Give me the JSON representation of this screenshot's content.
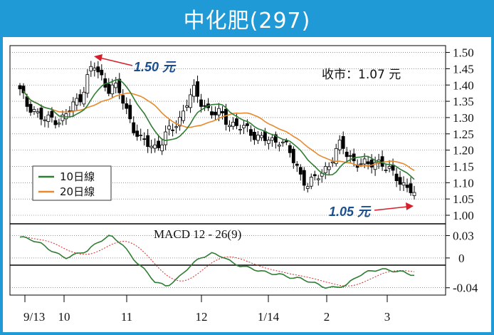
{
  "title": "中化肥(297)",
  "close_label": "收市：1.07 元",
  "annotations": {
    "high": "1.50 元",
    "low": "1.05 元"
  },
  "legend": {
    "ma10": "10日線",
    "ma20": "20日線"
  },
  "macd_label": "MACD 12 - 26(9)",
  "colors": {
    "frame": "#1f9ad6",
    "ma10": "#2e7d32",
    "ma20": "#e8892b",
    "signal": "#d62a2a",
    "annotation_arrow": "#d61f2a",
    "annotation_text": "#1a4f8f"
  },
  "chart_data": [
    {
      "type": "candlestick",
      "y_ticks": [
        "1.50",
        "1.45",
        "1.40",
        "1.35",
        "1.30",
        "1.25",
        "1.20",
        "1.15",
        "1.10",
        "1.05",
        "1.00"
      ],
      "ylim": [
        1.0,
        1.51
      ],
      "x_ticks": [
        "9/13",
        "10",
        "11",
        "12",
        "1/14",
        "2",
        "3"
      ],
      "grid": "horizontal dotted",
      "legend_position": "bottom-left",
      "series": [
        {
          "name": "10日線",
          "kind": "moving-average"
        },
        {
          "name": "20日線",
          "kind": "moving-average"
        }
      ],
      "close_points": [
        1.38,
        1.34,
        1.33,
        1.3,
        1.29,
        1.3,
        1.29,
        1.31,
        1.34,
        1.36,
        1.42,
        1.46,
        1.43,
        1.39,
        1.4,
        1.37,
        1.32,
        1.27,
        1.23,
        1.22,
        1.21,
        1.22,
        1.25,
        1.27,
        1.3,
        1.35,
        1.38,
        1.35,
        1.33,
        1.31,
        1.31,
        1.29,
        1.28,
        1.27,
        1.26,
        1.25,
        1.24,
        1.23,
        1.22,
        1.24,
        1.21,
        1.16,
        1.12,
        1.1,
        1.11,
        1.12,
        1.15,
        1.19,
        1.22,
        1.18,
        1.17,
        1.16,
        1.15,
        1.16,
        1.17,
        1.14,
        1.12,
        1.1,
        1.09,
        1.07
      ]
    },
    {
      "type": "line",
      "title": "MACD 12 - 26(9)",
      "y_ticks": [
        "0.03",
        "0",
        "-0.04"
      ],
      "ylim": [
        -0.046,
        0.042
      ],
      "series": [
        {
          "name": "MACD",
          "kind": "macd"
        },
        {
          "name": "signal",
          "kind": "signal"
        }
      ],
      "macd_points": [
        0.028,
        0.025,
        0.018,
        0.008,
        0.0,
        0.005,
        0.01,
        0.022,
        0.03,
        0.02,
        0.0,
        -0.015,
        -0.032,
        -0.038,
        -0.028,
        -0.012,
        0.0,
        0.006,
        0.002,
        -0.008,
        -0.012,
        -0.016,
        -0.02,
        -0.022,
        -0.026,
        -0.028,
        -0.033,
        -0.039,
        -0.04,
        -0.036,
        -0.024,
        -0.018,
        -0.015,
        -0.017,
        -0.019,
        -0.023
      ]
    }
  ]
}
